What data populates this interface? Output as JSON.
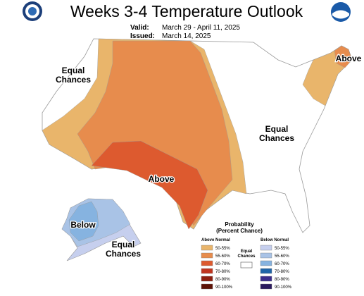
{
  "header": {
    "title": "Weeks 3-4 Temperature Outlook",
    "valid_label": "Valid:",
    "valid": "March 29 - April 11, 2025",
    "issued_label": "Issued:",
    "issued": "March 14, 2025"
  },
  "map": {
    "labels": [
      {
        "text": "Equal\nChances"
      },
      {
        "text": "Above"
      },
      {
        "text": "Equal\nChances"
      },
      {
        "text": "Above"
      },
      {
        "text": "Below"
      },
      {
        "text": "Equal\nChances"
      }
    ]
  },
  "legend": {
    "title": "Probability\n(Percent Chance)",
    "above_header": "Above Normal",
    "below_header": "Below Normal",
    "equal_chances": "Equal\nChances",
    "above": [
      {
        "label": "50-55%",
        "color": "#e9b56b"
      },
      {
        "label": "55-60%",
        "color": "#e78c4d"
      },
      {
        "label": "60-70%",
        "color": "#dd5a2f"
      },
      {
        "label": "70-80%",
        "color": "#c0351f"
      },
      {
        "label": "80-90%",
        "color": "#8e1f10"
      },
      {
        "label": "90-100%",
        "color": "#5e1206"
      }
    ],
    "below": [
      {
        "label": "50-55%",
        "color": "#c6cfee"
      },
      {
        "label": "55-60%",
        "color": "#a9c3e6"
      },
      {
        "label": "60-70%",
        "color": "#86b3e0"
      },
      {
        "label": "70-80%",
        "color": "#1f65a8"
      },
      {
        "label": "80-90%",
        "color": "#3b2d8c"
      },
      {
        "label": "90-100%",
        "color": "#2a1a5e"
      }
    ]
  }
}
